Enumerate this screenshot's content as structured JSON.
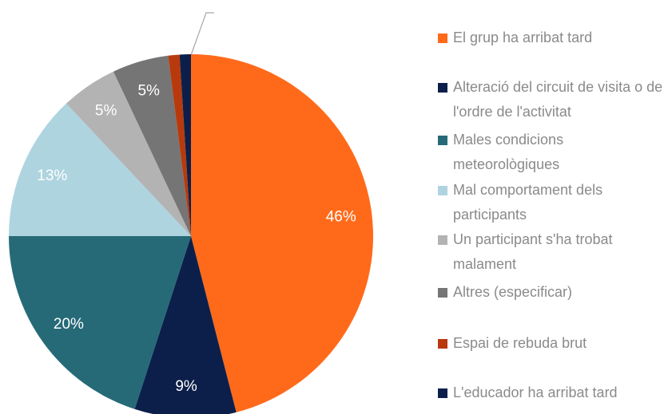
{
  "chart_data": {
    "type": "pie",
    "categories": [
      "El grup ha arribat tard",
      "Alteració del circuit de visita o de l'ordre de l'activitat",
      "Males condicions meteorològiques",
      "Mal comportament dels participants",
      "Un participant s'ha trobat malament",
      "Altres (especificar)",
      "Espai de rebuda brut",
      "L'educador ha arribat tard"
    ],
    "values": [
      46,
      9,
      20,
      13,
      5,
      5,
      1,
      1
    ],
    "value_labels": [
      "46%",
      "9%",
      "20%",
      "13%",
      "5%",
      "5%",
      null,
      null
    ],
    "colors": [
      "#ff6a1a",
      "#0c1f4a",
      "#266a78",
      "#aed4e0",
      "#b3b3b3",
      "#757575",
      "#b83a0c",
      "#0c1f4a"
    ],
    "legend": "right"
  }
}
